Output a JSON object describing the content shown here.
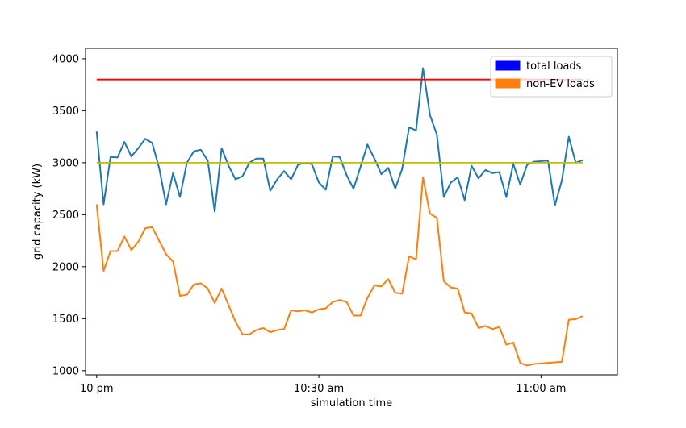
{
  "chart_data": {
    "type": "line",
    "title": "",
    "xlabel": "simulation time",
    "ylabel": "grid capacity (kW)",
    "ylim": [
      960,
      4100
    ],
    "xlim": [
      -1.6,
      75
    ],
    "x_ticks": [
      {
        "pos": 0,
        "label": "10 pm"
      },
      {
        "pos": 32,
        "label": "10:30 am"
      },
      {
        "pos": 64,
        "label": "11:00 am"
      }
    ],
    "y_ticks": [
      1000,
      1500,
      2000,
      2500,
      3000,
      3500,
      4000
    ],
    "grid": false,
    "legend_position": "top-right",
    "legend": [
      {
        "label": "total loads",
        "color": "#0000ff"
      },
      {
        "label": "non-EV loads",
        "color": "#ff7f0e"
      }
    ],
    "series": [
      {
        "color": "#1f77b4",
        "values": [
          3300,
          2600,
          3055,
          3050,
          3200,
          3060,
          3140,
          3230,
          3190,
          2950,
          2600,
          2900,
          2670,
          3000,
          3110,
          3125,
          3020,
          2530,
          3140,
          2970,
          2840,
          2870,
          3000,
          3040,
          3040,
          2730,
          2840,
          2920,
          2840,
          2980,
          3000,
          2985,
          2810,
          2740,
          3060,
          3055,
          2880,
          2750,
          2960,
          3175,
          3040,
          2890,
          2950,
          2750,
          2940,
          3340,
          3310,
          3910,
          3460,
          3270,
          2670,
          2810,
          2860,
          2640,
          2970,
          2850,
          2930,
          2900,
          2910,
          2670,
          2990,
          2790,
          2980,
          3010,
          3015,
          3020,
          2590,
          2830,
          3250,
          3000,
          3025
        ]
      },
      {
        "color": "#ff7f0e",
        "values": [
          2600,
          1960,
          2150,
          2150,
          2290,
          2160,
          2240,
          2370,
          2380,
          2250,
          2120,
          2050,
          1720,
          1730,
          1830,
          1840,
          1790,
          1650,
          1790,
          1630,
          1470,
          1350,
          1350,
          1390,
          1410,
          1370,
          1390,
          1400,
          1580,
          1570,
          1580,
          1560,
          1590,
          1600,
          1660,
          1680,
          1660,
          1530,
          1530,
          1700,
          1820,
          1810,
          1880,
          1750,
          1740,
          2100,
          2070,
          2860,
          2510,
          2470,
          1860,
          1800,
          1790,
          1560,
          1550,
          1410,
          1430,
          1400,
          1420,
          1250,
          1270,
          1075,
          1050,
          1065,
          1070,
          1075,
          1080,
          1085,
          1490,
          1495,
          1525
        ]
      },
      {
        "color": "#ff0000",
        "values": [
          3800,
          3800
        ]
      },
      {
        "color": "#bfbf00",
        "values": [
          3000,
          3000
        ]
      }
    ]
  }
}
